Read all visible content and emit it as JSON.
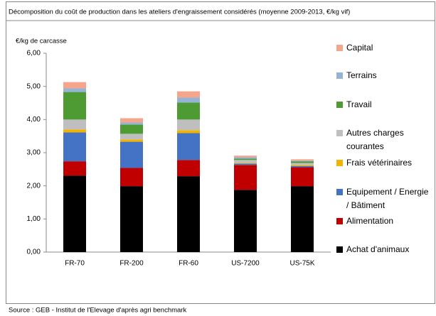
{
  "chart_data": {
    "type": "stacked_bar",
    "title": "Décomposition du coût de production dans les ateliers d'engraissement considérés (moyenne 2009-2013, €/kg vif)",
    "y_label": "€/kg de carcasse",
    "source": "Source : GEB - Institut de l'Elevage d'après agri benchmark",
    "categories": [
      "FR-70",
      "FR-200",
      "FR-60",
      "US-7200",
      "US-75K"
    ],
    "ylim": [
      0,
      6
    ],
    "yticks": [
      {
        "value": 0,
        "label": "0,00"
      },
      {
        "value": 1,
        "label": "1,00"
      },
      {
        "value": 2,
        "label": "2,00"
      },
      {
        "value": 3,
        "label": "3,00"
      },
      {
        "value": 4,
        "label": "4,00"
      },
      {
        "value": 5,
        "label": "5,00"
      },
      {
        "value": 6,
        "label": "6,00"
      }
    ],
    "series": [
      {
        "name": "Achat d'animaux",
        "color": "#000000",
        "values": [
          2.31,
          1.99,
          2.29,
          1.88,
          1.99
        ]
      },
      {
        "name": "Alimentation",
        "color": "#c00000",
        "values": [
          0.43,
          0.55,
          0.49,
          0.75,
          0.57
        ]
      },
      {
        "name": "Equipement / Energie / Bâtiment",
        "color": "#4472c4",
        "values": [
          0.87,
          0.79,
          0.81,
          0.04,
          0.04
        ]
      },
      {
        "name": "Frais vétérinaires",
        "color": "#f0b400",
        "values": [
          0.09,
          0.07,
          0.09,
          0.02,
          0.03
        ]
      },
      {
        "name": "Autres charges courantes",
        "color": "#bfbfbf",
        "values": [
          0.3,
          0.17,
          0.32,
          0.09,
          0.06
        ]
      },
      {
        "name": "Travail",
        "color": "#4e9a33",
        "values": [
          0.83,
          0.28,
          0.51,
          0.04,
          0.05
        ]
      },
      {
        "name": "Terrains",
        "color": "#95b3d7",
        "values": [
          0.11,
          0.06,
          0.15,
          0.04,
          0.02
        ]
      },
      {
        "name": "Capital",
        "color": "#f4a58c",
        "values": [
          0.19,
          0.13,
          0.19,
          0.05,
          0.04
        ]
      }
    ]
  }
}
